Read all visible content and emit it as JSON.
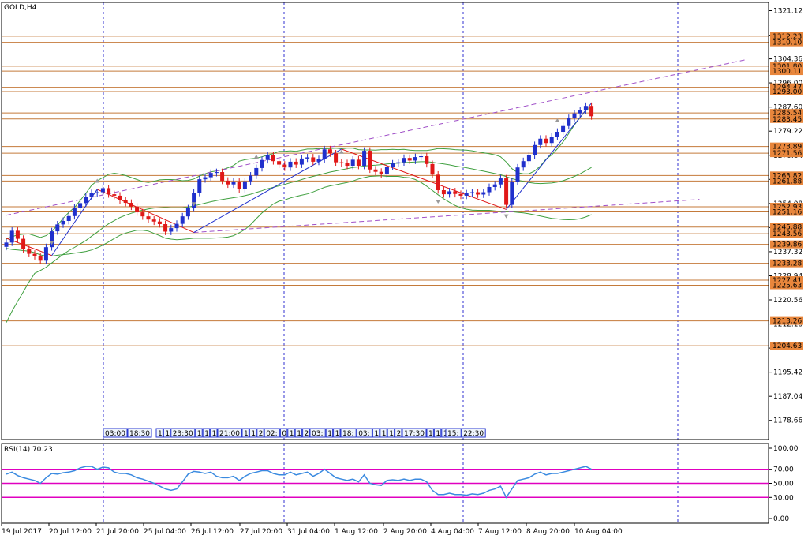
{
  "chart_data": {
    "type": "candlestick",
    "title": "GOLD,H4",
    "price_axis": {
      "range": [
        1172.0,
        1324.0
      ],
      "ticks": [
        "1321.12",
        "1312.58",
        "1304.36",
        "1296.00",
        "1287.60",
        "1279.22",
        "1270.84",
        "1262.46",
        "1254.08",
        "1245.70",
        "1237.32",
        "1228.94",
        "1220.56",
        "1212.18",
        "1203.80",
        "1195.42",
        "1187.04",
        "1178.66"
      ]
    },
    "levels": [
      {
        "price": 1312.23,
        "label": "1312.23"
      },
      {
        "price": 1310.1,
        "label": "1310.10"
      },
      {
        "price": 1301.8,
        "label": "1301.80"
      },
      {
        "price": 1300.11,
        "label": "1300.11"
      },
      {
        "price": 1294.47,
        "label": "1294.47"
      },
      {
        "price": 1293.0,
        "label": "1293.00"
      },
      {
        "price": 1285.54,
        "label": "1285.54"
      },
      {
        "price": 1283.45,
        "label": "1283.45"
      },
      {
        "price": 1273.89,
        "label": "1273.89"
      },
      {
        "price": 1271.56,
        "label": "1271.56"
      },
      {
        "price": 1263.82,
        "label": "1263.82"
      },
      {
        "price": 1261.88,
        "label": "1261.88"
      },
      {
        "price": 1252.93,
        "label": "1252.93"
      },
      {
        "price": 1251.16,
        "label": "1251.16"
      },
      {
        "price": 1245.88,
        "label": "1245.88"
      },
      {
        "price": 1243.56,
        "label": "1243.56"
      },
      {
        "price": 1239.86,
        "label": "1239.86"
      },
      {
        "price": 1233.28,
        "label": "1233.28"
      },
      {
        "price": 1227.41,
        "label": "1227.41"
      },
      {
        "price": 1225.63,
        "label": "1225.63"
      },
      {
        "price": 1213.26,
        "label": "1213.26"
      },
      {
        "price": 1204.63,
        "label": "1204.63"
      }
    ],
    "x_labels": [
      "19 Jul 2017",
      "20 Jul 12:00",
      "21 Jul 20:00",
      "25 Jul 04:00",
      "26 Jul 12:00",
      "27 Jul 20:00",
      "31 Jul 04:00",
      "1 Aug 12:00",
      "2 Aug 20:00",
      "4 Aug 04:00",
      "7 Aug 12:00",
      "8 Aug 20:00",
      "10 Aug 04:00"
    ],
    "close": [
      1240.5,
      1244.6,
      1241.8,
      1238.2,
      1236.6,
      1235.8,
      1234.2,
      1238.9,
      1244.4,
      1246.8,
      1248.0,
      1249.7,
      1252.6,
      1254.2,
      1256.5,
      1257.7,
      1258.0,
      1259.4,
      1257.3,
      1256.8,
      1255.2,
      1254.3,
      1253.0,
      1251.0,
      1249.6,
      1248.5,
      1247.8,
      1246.9,
      1244.3,
      1245.5,
      1247.0,
      1249.6,
      1252.4,
      1257.8,
      1262.5,
      1263.2,
      1264.7,
      1265.0,
      1262.0,
      1260.7,
      1261.6,
      1259.0,
      1261.8,
      1263.8,
      1266.4,
      1269.2,
      1270.8,
      1268.8,
      1267.6,
      1266.6,
      1268.6,
      1267.6,
      1269.7,
      1270.1,
      1268.6,
      1269.5,
      1272.9,
      1271.5,
      1268.4,
      1268.1,
      1267.2,
      1269.3,
      1267.2,
      1272.4,
      1265.9,
      1265.1,
      1264.2,
      1266.8,
      1268.0,
      1268.4,
      1269.9,
      1269.0,
      1270.2,
      1270.5,
      1267.8,
      1264.1,
      1258.7,
      1257.3,
      1258.3,
      1257.4,
      1256.8,
      1257.6,
      1258.0,
      1257.2,
      1258.0,
      1259.8,
      1260.7,
      1262.8,
      1253.6,
      1261.7,
      1266.6,
      1268.8,
      1270.8,
      1274.4,
      1276.6,
      1275.1,
      1277.3,
      1279.0,
      1281.0,
      1283.8,
      1285.4,
      1286.4,
      1288.0,
      1284.4
    ],
    "bands": {
      "upper": [
        1241.7,
        1242.5,
        1243.2,
        1243.4,
        1243.5,
        1242.9,
        1242.3,
        1242.9,
        1244.4,
        1246.5,
        1248.9,
        1251.0,
        1252.7,
        1255.1,
        1257.6,
        1260.4,
        1262.0,
        1263.1,
        1264.2,
        1264.6,
        1264.3,
        1263.8,
        1263.1,
        1262.4,
        1261.7,
        1261.4,
        1261.8,
        1262.3,
        1262.4,
        1262.4,
        1262.3,
        1262.0,
        1262.1,
        1262.6,
        1263.6,
        1264.4,
        1265.1,
        1265.4,
        1265.8,
        1266.5,
        1267.3,
        1268.8,
        1269.3,
        1269.6,
        1269.8,
        1270.3,
        1270.9,
        1271.4,
        1272.2,
        1272.2,
        1272.4,
        1272.2,
        1272.6,
        1273.0,
        1273.0,
        1273.2,
        1273.1,
        1273.2,
        1273.3,
        1273.1,
        1273.3,
        1273.3,
        1272.8,
        1272.7,
        1272.7,
        1272.6,
        1272.8,
        1272.8,
        1272.9,
        1272.8,
        1272.9,
        1272.6,
        1272.5,
        1272.5,
        1272.5,
        1272.8,
        1273.2,
        1273.1,
        1273.0,
        1272.8,
        1272.7,
        1272.6,
        1272.4,
        1272.0,
        1271.7,
        1271.4,
        1271.0,
        1270.3,
        1268.5,
        1266.2,
        1264.8,
        1264.4,
        1264.4,
        1265.4,
        1267.1,
        1269.5,
        1271.0,
        1273.1,
        1275.5,
        1278.4,
        1281.4,
        1284.0,
        1286.5,
        1287.6
      ],
      "middle": [
        1212.7,
        1216.6,
        1220.1,
        1223.4,
        1226.8,
        1229.8,
        1230.8,
        1231.9,
        1233.4,
        1234.9,
        1236.4,
        1237.7,
        1238.8,
        1240.0,
        1241.2,
        1242.7,
        1244.1,
        1245.6,
        1247.0,
        1248.1,
        1249.2,
        1250.0,
        1250.7,
        1251.3,
        1251.8,
        1252.2,
        1252.5,
        1252.6,
        1252.7,
        1252.6,
        1252.6,
        1252.6,
        1252.8,
        1253.2,
        1253.7,
        1254.2,
        1254.7,
        1255.1,
        1255.5,
        1255.8,
        1256.1,
        1256.4,
        1256.8,
        1257.3,
        1257.9,
        1258.5,
        1259.2,
        1259.7,
        1260.2,
        1260.7,
        1261.3,
        1261.8,
        1262.4,
        1263.0,
        1263.5,
        1264.0,
        1264.5,
        1265.0,
        1265.4,
        1265.8,
        1266.2,
        1266.6,
        1266.8,
        1267.1,
        1267.3,
        1267.4,
        1267.6,
        1267.8,
        1268.0,
        1268.1,
        1268.3,
        1268.4,
        1268.5,
        1268.6,
        1268.6,
        1268.4,
        1268.1,
        1267.8,
        1267.5,
        1267.1,
        1266.8,
        1266.5,
        1266.1,
        1265.7,
        1265.3,
        1264.9,
        1264.5,
        1264.1,
        1263.4,
        1262.7,
        1262.2,
        1261.8,
        1261.4,
        1261.1,
        1261.0,
        1261.1,
        1261.2,
        1261.5,
        1262.0,
        1262.7,
        1263.5,
        1264.4,
        1265.5,
        1266.6
      ],
      "lower": [
        1238.5,
        1238.1,
        1237.9,
        1237.7,
        1237.5,
        1237.0,
        1236.2,
        1235.8,
        1235.8,
        1236.1,
        1236.3,
        1236.5,
        1236.8,
        1237.1,
        1237.4,
        1237.9,
        1238.7,
        1239.6,
        1240.7,
        1241.9,
        1243.0,
        1243.8,
        1244.3,
        1244.8,
        1244.8,
        1244.5,
        1243.7,
        1242.9,
        1242.0,
        1241.7,
        1241.5,
        1241.6,
        1241.8,
        1242.0,
        1242.0,
        1242.0,
        1242.0,
        1242.1,
        1242.2,
        1242.4,
        1242.9,
        1243.9,
        1245.0,
        1246.7,
        1248.8,
        1250.8,
        1252.4,
        1253.9,
        1254.9,
        1255.3,
        1256.0,
        1256.5,
        1257.0,
        1257.4,
        1258.1,
        1258.9,
        1259.7,
        1260.2,
        1260.6,
        1261.0,
        1261.4,
        1261.9,
        1262.6,
        1263.1,
        1263.5,
        1263.6,
        1263.7,
        1263.5,
        1263.5,
        1263.5,
        1263.2,
        1263.0,
        1262.4,
        1261.4,
        1260.1,
        1258.6,
        1257.1,
        1255.7,
        1254.5,
        1253.4,
        1252.6,
        1252.1,
        1251.8,
        1251.7,
        1251.7,
        1251.7,
        1251.5,
        1251.3,
        1251.2,
        1251.2,
        1251.0,
        1250.8,
        1250.5,
        1250.1,
        1249.7,
        1249.3,
        1248.9,
        1248.7,
        1248.5,
        1248.4,
        1248.5,
        1248.8,
        1249.4,
        1250.2
      ]
    },
    "rsi": {
      "label": "RSI(14) 70.23",
      "ticks": [
        "100.00",
        "70.00",
        "50.00",
        "30.00",
        "0.00"
      ],
      "levels": [
        70,
        50,
        30
      ],
      "values": [
        63,
        66,
        61,
        58,
        56,
        54,
        50,
        58,
        64,
        63,
        65,
        66,
        68,
        72,
        74,
        74,
        70,
        73,
        72,
        66,
        64,
        64,
        62,
        58,
        56,
        53,
        50,
        46,
        42,
        40,
        42,
        52,
        63,
        67,
        66,
        64,
        66,
        60,
        58,
        58,
        60,
        54,
        60,
        64,
        66,
        68,
        68,
        64,
        62,
        62,
        66,
        62,
        64,
        66,
        60,
        64,
        70,
        64,
        58,
        56,
        54,
        56,
        52,
        62,
        50,
        48,
        47,
        54,
        55,
        54,
        56,
        54,
        56,
        56,
        52,
        40,
        34,
        34,
        36,
        34,
        34,
        33,
        35,
        34,
        36,
        40,
        42,
        46,
        30,
        42,
        54,
        56,
        58,
        63,
        66,
        62,
        64,
        64,
        66,
        68,
        70,
        72,
        74,
        70
      ]
    },
    "annotation_times": [
      "03:00",
      "18:30",
      "1",
      "1",
      "23:30",
      "1",
      "1",
      "1",
      "21:00",
      "1",
      "1",
      "2",
      "02:",
      "0",
      "1",
      "1",
      "2",
      "03:",
      "1",
      "1",
      "18:",
      "03:",
      "1",
      "1",
      "1",
      "2",
      "02:",
      "1",
      "1",
      "17:30",
      "1",
      "1",
      "17:30",
      "15:",
      "22:30"
    ],
    "colors": {
      "bull": "#2030cc",
      "bear": "#e01818",
      "band": "#40a040",
      "level": "#c47a3a",
      "trend": "#a050c8",
      "rsi_line": "#3a8ae0",
      "rsi_level": "#e000c0",
      "grid": "#3030d0",
      "label_bg": "#e8863c"
    }
  }
}
